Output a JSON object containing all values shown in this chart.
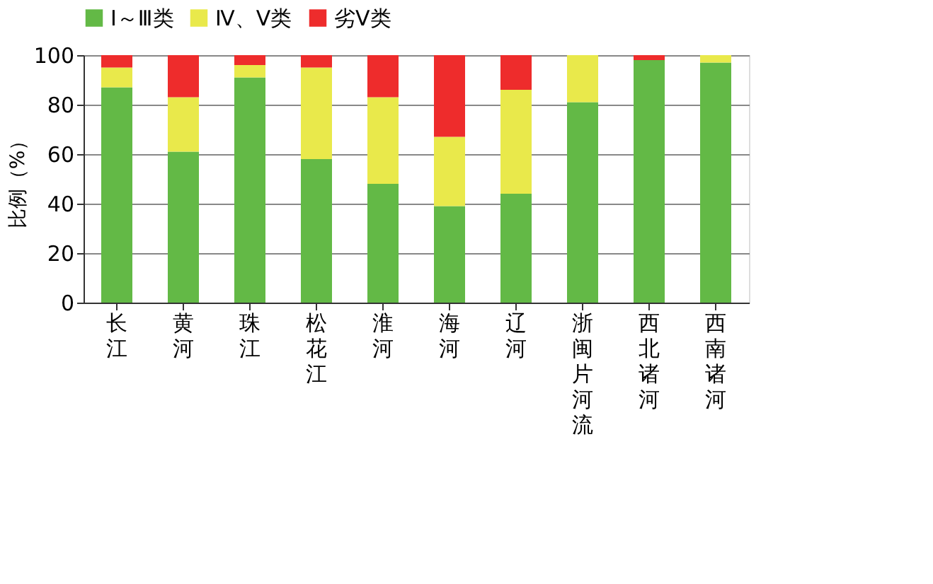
{
  "chart_data": {
    "type": "bar",
    "stacked": true,
    "ylabel": "比例（%）",
    "categories": [
      "长江",
      "黄河",
      "珠江",
      "松花江",
      "淮河",
      "海河",
      "辽河",
      "浙闽片河流",
      "西北诸河",
      "西南诸河"
    ],
    "series": [
      {
        "name": "Ⅰ～Ⅲ类",
        "color": "#63b946",
        "values": [
          87,
          61,
          91,
          58,
          48,
          39,
          44,
          81,
          98,
          97
        ]
      },
      {
        "name": "Ⅳ、Ⅴ类",
        "color": "#e9e94b",
        "values": [
          8,
          22,
          5,
          37,
          35,
          28,
          42,
          19,
          0,
          3
        ]
      },
      {
        "name": "劣Ⅴ类",
        "color": "#ee2c2c",
        "values": [
          5,
          17,
          4,
          5,
          17,
          33,
          14,
          0,
          2,
          0
        ]
      }
    ],
    "ylim": [
      0,
      100
    ],
    "yticks": [
      0,
      20,
      40,
      60,
      80,
      100
    ],
    "grid": "y",
    "legend": "top"
  }
}
